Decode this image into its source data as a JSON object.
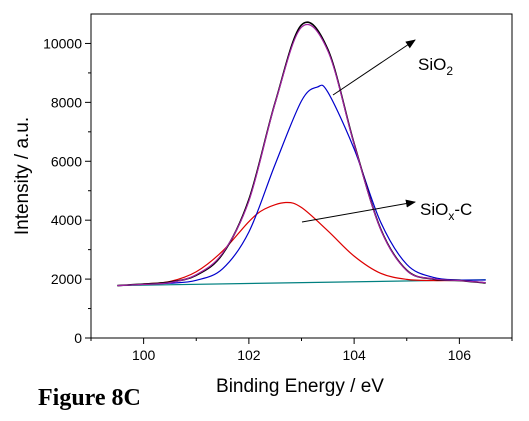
{
  "figure_label": "Figure 8C",
  "chart_data": {
    "type": "line",
    "xlabel": "Binding Energy / eV",
    "ylabel": "Intensity / a.u.",
    "xlim": [
      99.0,
      107.0
    ],
    "ylim": [
      0,
      11000
    ],
    "x_ticks": [
      100,
      102,
      104,
      106
    ],
    "y_ticks": [
      0,
      2000,
      4000,
      6000,
      8000,
      10000
    ],
    "grid": false,
    "legend": "none",
    "annotations": [
      {
        "text_main": "SiO",
        "text_sub": "2",
        "text_tail": "",
        "points_to": [
          103.3,
          8000
        ]
      },
      {
        "text_main": "SiO",
        "text_sub": "x",
        "text_tail": "-C",
        "points_to": [
          103.0,
          4000
        ]
      }
    ],
    "series": [
      {
        "role": "raw",
        "color": "#000000",
        "x": [
          99.5,
          100.0,
          100.5,
          101.0,
          101.5,
          102.0,
          102.5,
          103.0,
          103.5,
          104.0,
          104.5,
          105.0,
          105.5,
          106.0,
          106.5
        ],
        "y": [
          1780,
          1830,
          1900,
          2130,
          2850,
          4700,
          8000,
          10630,
          9800,
          6600,
          3720,
          2300,
          2000,
          1950,
          1870
        ]
      },
      {
        "role": "envelope",
        "color": "#a020a0",
        "x": [
          99.5,
          100.0,
          100.5,
          101.0,
          101.5,
          102.0,
          102.5,
          103.0,
          103.5,
          104.0,
          104.5,
          105.0,
          105.5,
          106.0,
          106.5
        ],
        "y": [
          1780,
          1820,
          1880,
          2150,
          2880,
          4650,
          7980,
          10550,
          9750,
          6580,
          3700,
          2290,
          2010,
          1950,
          1880
        ]
      },
      {
        "role": "peak-SiO2",
        "color": "#0000cc",
        "x": [
          100.0,
          100.5,
          101.0,
          101.5,
          102.0,
          102.5,
          103.0,
          103.3,
          103.5,
          104.0,
          104.5,
          105.0,
          105.5,
          106.0,
          106.5
        ],
        "y": [
          1830,
          1860,
          1960,
          2350,
          3600,
          5900,
          8050,
          8520,
          8350,
          6420,
          3950,
          2500,
          2060,
          1970,
          1970
        ]
      },
      {
        "role": "peak-SiOx-C",
        "color": "#dd0000",
        "x": [
          100.0,
          100.5,
          101.0,
          101.5,
          102.0,
          102.3,
          102.7,
          103.0,
          103.5,
          104.0,
          104.5,
          105.0,
          105.5,
          106.0
        ],
        "y": [
          1840,
          1920,
          2250,
          2950,
          3950,
          4380,
          4600,
          4430,
          3640,
          2780,
          2200,
          1990,
          1950,
          1960
        ]
      },
      {
        "role": "background",
        "color": "#008080",
        "x": [
          99.5,
          106.5
        ],
        "y": [
          1780,
          1980
        ]
      }
    ]
  }
}
